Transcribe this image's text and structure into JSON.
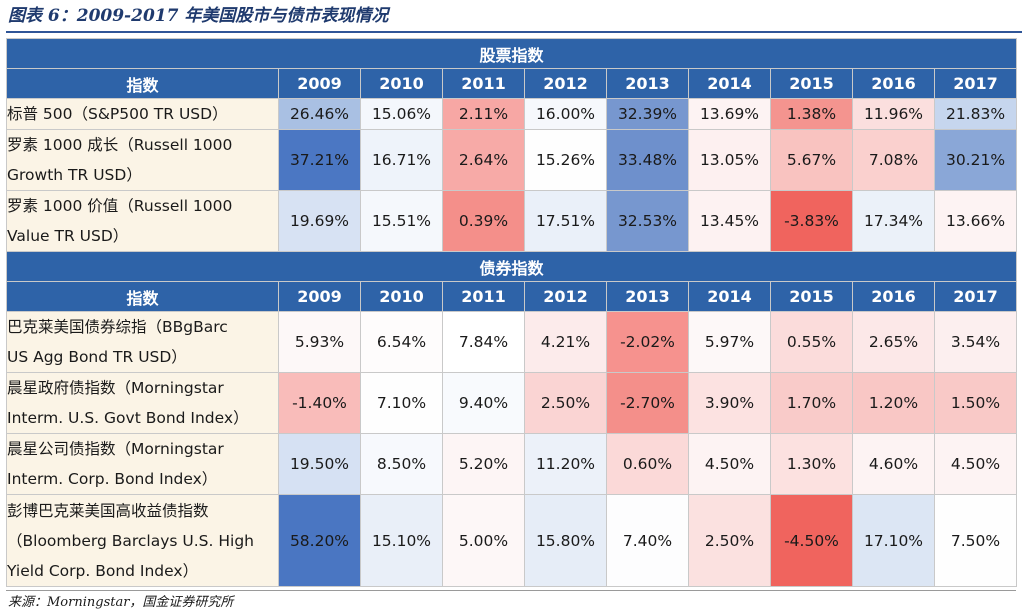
{
  "title": "图表 6：2009-2017 年美国股市与债市表现情况",
  "source": "来源：Morningstar，国金证券研究所",
  "colors": {
    "header_bg": "#2e63a8",
    "label_bg": "#fbf4e6",
    "high_blue": "#4a76c2",
    "mid_blue": "#a9c0e3",
    "low_red": "#f0645e",
    "mid_red": "#f6a5a1"
  },
  "stock": {
    "section_title": "股票指数",
    "col_header": "指数",
    "years": [
      "2009",
      "2010",
      "2011",
      "2012",
      "2013",
      "2014",
      "2015",
      "2016",
      "2017"
    ],
    "rows": [
      {
        "lines": [
          "标普 500（S&P500 TR USD）"
        ],
        "values": [
          "26.46%",
          "15.06%",
          "2.11%",
          "16.00%",
          "32.39%",
          "13.69%",
          "1.38%",
          "11.96%",
          "21.83%"
        ],
        "colors": [
          "#a9c0e3",
          "#f4f7fc",
          "#f7a7a4",
          "#f6f8fc",
          "#7797cf",
          "#fdf3f3",
          "#f4948f",
          "#fbdfde",
          "#c6d6ee"
        ]
      },
      {
        "lines": [
          "罗素 1000 成长（Russell 1000",
          "Growth TR USD）"
        ],
        "values": [
          "37.21%",
          "16.71%",
          "2.64%",
          "15.26%",
          "33.48%",
          "13.05%",
          "5.67%",
          "7.08%",
          "30.21%"
        ],
        "colors": [
          "#4b77c3",
          "#eef3fa",
          "#f7aaa7",
          "#fefefe",
          "#6e90cc",
          "#fdf0f0",
          "#f9c3c0",
          "#fad0ce",
          "#8aa7d7"
        ]
      },
      {
        "lines": [
          "罗素 1000 价值（Russell 1000",
          "Value TR USD）"
        ],
        "values": [
          "19.69%",
          "15.51%",
          "0.39%",
          "17.51%",
          "32.53%",
          "13.45%",
          "-3.83%",
          "17.34%",
          "13.66%"
        ],
        "colors": [
          "#d7e2f3",
          "#f5f8fc",
          "#f48f8a",
          "#eaf0f9",
          "#7797cf",
          "#fdf2f2",
          "#f0645e",
          "#ebf1f9",
          "#fdf3f3"
        ]
      }
    ]
  },
  "bond": {
    "section_title": "债券指数",
    "col_header": "指数",
    "years": [
      "2009",
      "2010",
      "2011",
      "2012",
      "2013",
      "2014",
      "2015",
      "2016",
      "2017"
    ],
    "rows": [
      {
        "lines": [
          "巴克莱美国债券综指（BBgBarc",
          "US Agg Bond TR USD）"
        ],
        "values": [
          "5.93%",
          "6.54%",
          "7.84%",
          "4.21%",
          "-2.02%",
          "5.97%",
          "0.55%",
          "2.65%",
          "3.54%"
        ],
        "colors": [
          "#fdf8f8",
          "#fefcfc",
          "#ffffff",
          "#fcebeb",
          "#f6928e",
          "#fdf8f8",
          "#fbdcdb",
          "#fce8e8",
          "#fcefef"
        ]
      },
      {
        "lines": [
          "晨星政府债指数（Morningstar",
          "Interm. U.S. Govt Bond Index）"
        ],
        "values": [
          "-1.40%",
          "7.10%",
          "9.40%",
          "2.50%",
          "-2.70%",
          "3.90%",
          "1.70%",
          "1.20%",
          "1.50%"
        ],
        "colors": [
          "#f9bcba",
          "#fefefe",
          "#f8fafd",
          "#fad4d3",
          "#f48f8a",
          "#fce2e1",
          "#f9cbc9",
          "#f9c7c5",
          "#f9c9c7"
        ]
      },
      {
        "lines": [
          "晨星公司债指数（Morningstar",
          "Interm. Corp. Bond Index）"
        ],
        "values": [
          "19.50%",
          "8.50%",
          "5.20%",
          "11.20%",
          "0.60%",
          "4.50%",
          "1.30%",
          "4.60%",
          "4.50%"
        ],
        "colors": [
          "#d6e1f3",
          "#f7f9fd",
          "#fdf5f5",
          "#ecf1f9",
          "#fbd9d8",
          "#fdf3f3",
          "#fce1e0",
          "#fdf3f3",
          "#fdf3f3"
        ]
      },
      {
        "lines": [
          "彭博巴克莱美国高收益债指数",
          "（Bloomberg Barclays U.S. High",
          "Yield Corp. Bond Index）"
        ],
        "values": [
          "58.20%",
          "15.10%",
          "5.00%",
          "15.80%",
          "7.40%",
          "2.50%",
          "-4.50%",
          "17.10%",
          "7.50%"
        ],
        "colors": [
          "#4a76c2",
          "#e9eff8",
          "#fdf7f7",
          "#e6edf7",
          "#fdfdfe",
          "#fbe1e0",
          "#f0645e",
          "#dce6f4",
          "#fefefe"
        ]
      }
    ]
  }
}
